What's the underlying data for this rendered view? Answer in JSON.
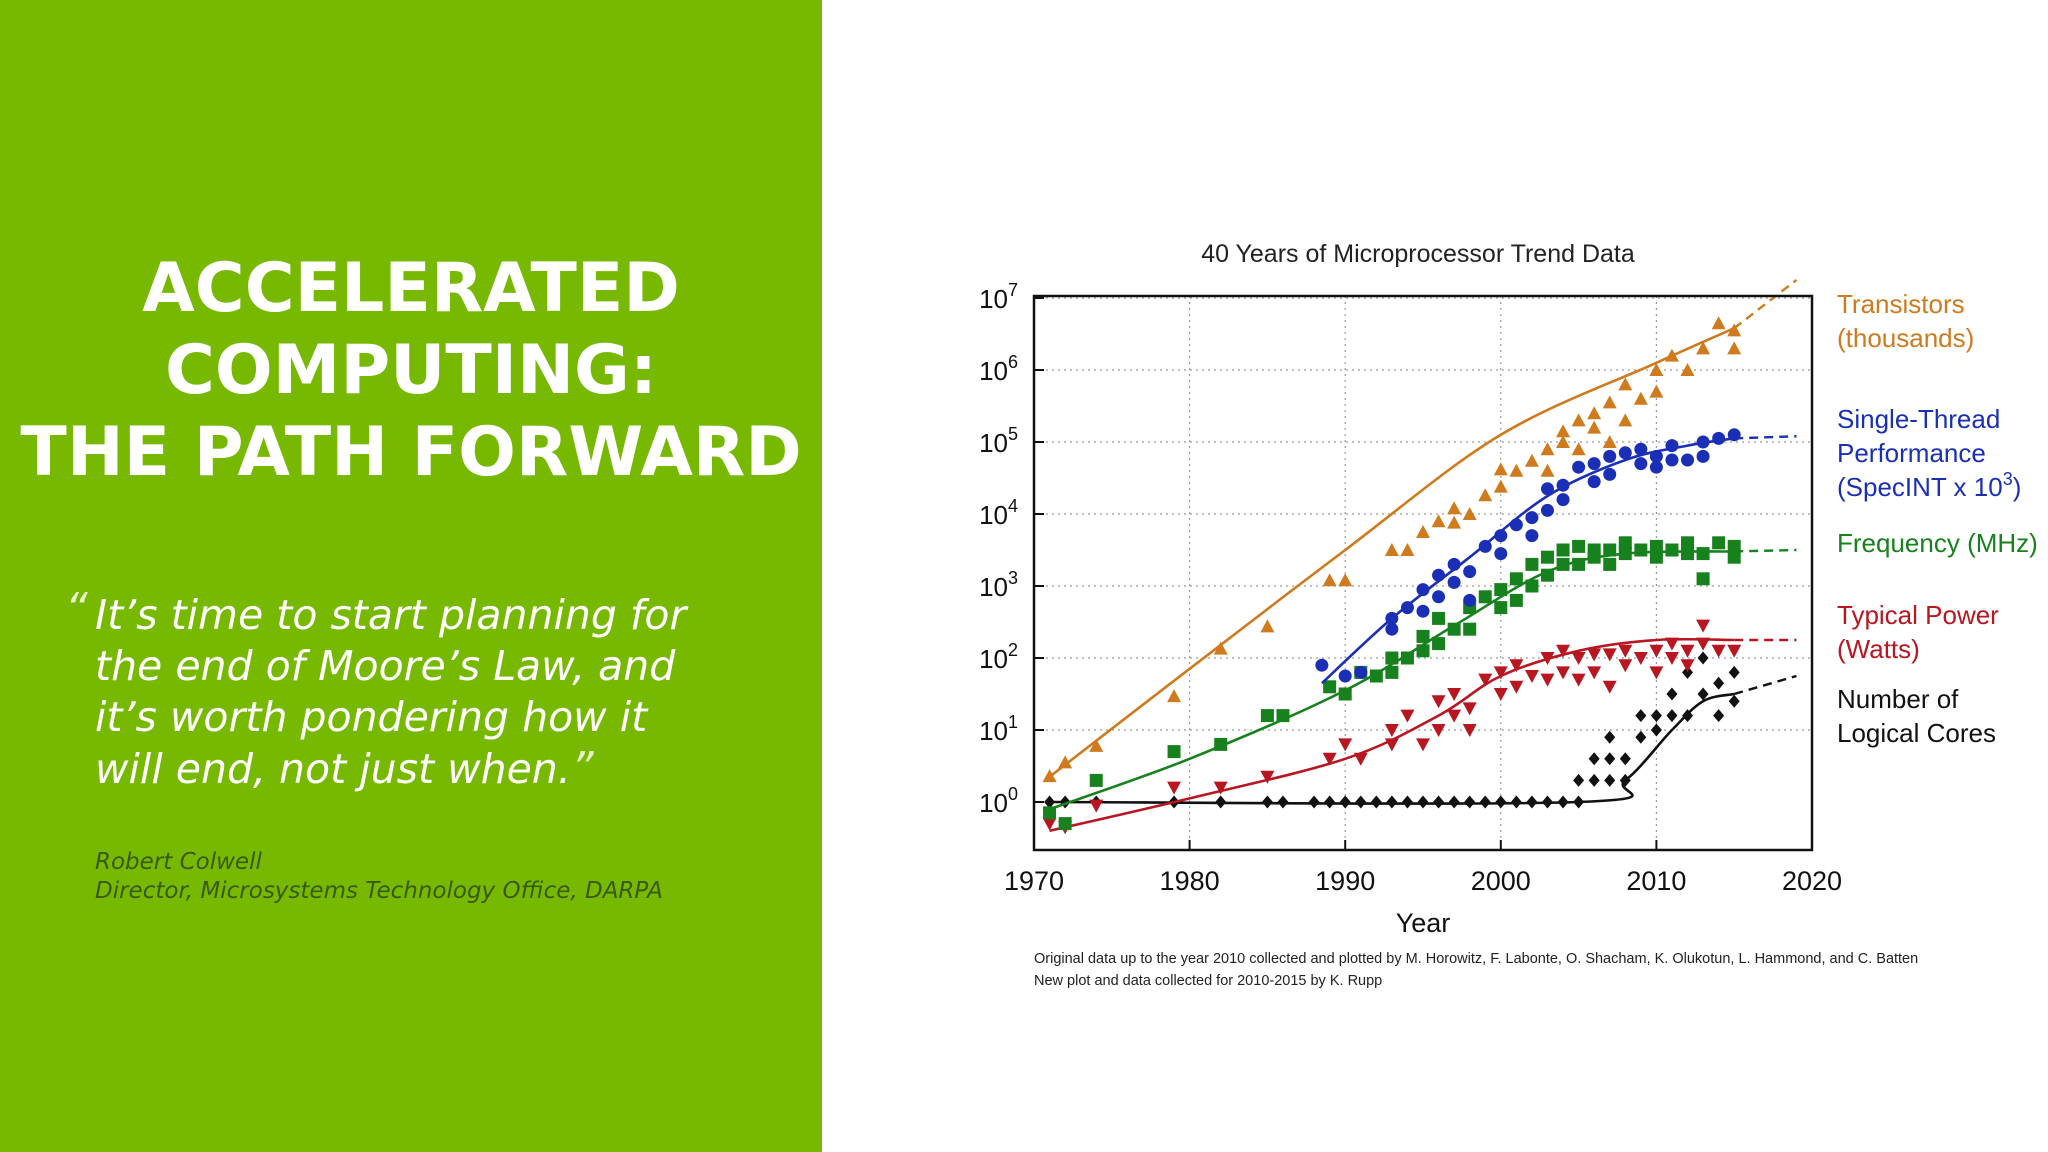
{
  "slide": {
    "title_lines": [
      "ACCELERATED",
      "COMPUTING:",
      "THE PATH FORWARD"
    ],
    "quote_open": "“",
    "quote_lines": [
      "It’s time to start planning for",
      "the end of Moore’s Law, and",
      "it’s worth pondering how it",
      "will end, not just when."
    ],
    "quote_close": "”",
    "attribution_name": "Robert Colwell",
    "attribution_role": "Director, Microsystems Technology Office, DARPA",
    "accent_color": "#77b900"
  },
  "chart_data": {
    "type": "scatter",
    "title": "40 Years of Microprocessor Trend Data",
    "xlabel": "Year",
    "ylabel": "",
    "xlim": [
      1970,
      2020
    ],
    "ylim": [
      0,
      7
    ],
    "y_scale": "log10",
    "x_ticks": [
      1970,
      1980,
      1990,
      2000,
      2010,
      2020
    ],
    "y_tick_labels": [
      {
        "base": "10",
        "exp": "0",
        "value": 0
      },
      {
        "base": "10",
        "exp": "1",
        "value": 1
      },
      {
        "base": "10",
        "exp": "2",
        "value": 2
      },
      {
        "base": "10",
        "exp": "3",
        "value": 3
      },
      {
        "base": "10",
        "exp": "4",
        "value": 4
      },
      {
        "base": "10",
        "exp": "5",
        "value": 5
      },
      {
        "base": "10",
        "exp": "6",
        "value": 6
      },
      {
        "base": "10",
        "exp": "7",
        "value": 7
      }
    ],
    "grid": true,
    "legend": "right",
    "footnote_lines": [
      "Original data up to the year 2010 collected and plotted by M. Horowitz, F. Labonte, O. Shacham, K. Olukotun, L. Hammond, and C. Batten",
      "New plot and data collected for 2010-2015 by K. Rupp"
    ],
    "series": [
      {
        "name": "Transistors (thousands)",
        "label_lines": [
          "Transistors",
          "(thousands)"
        ],
        "color": "#d07a1e",
        "marker": "triangle-up",
        "points": [
          [
            1971,
            0.36
          ],
          [
            1972,
            0.55
          ],
          [
            1974,
            0.78
          ],
          [
            1979,
            1.47
          ],
          [
            1982,
            2.13
          ],
          [
            1985,
            2.44
          ],
          [
            1989,
            3.08
          ],
          [
            1990,
            3.08
          ],
          [
            1993,
            3.5
          ],
          [
            1994,
            3.5
          ],
          [
            1995,
            3.75
          ],
          [
            1996,
            3.9
          ],
          [
            1997,
            3.88
          ],
          [
            1997,
            4.08
          ],
          [
            1998,
            4.0
          ],
          [
            1999,
            4.26
          ],
          [
            2000,
            4.62
          ],
          [
            2000,
            4.38
          ],
          [
            2001,
            4.6
          ],
          [
            2002,
            4.74
          ],
          [
            2003,
            4.9
          ],
          [
            2003,
            4.6
          ],
          [
            2004,
            5.0
          ],
          [
            2004,
            5.15
          ],
          [
            2005,
            5.3
          ],
          [
            2005,
            4.9
          ],
          [
            2006,
            5.4
          ],
          [
            2006,
            5.2
          ],
          [
            2007,
            5.55
          ],
          [
            2007,
            5.0
          ],
          [
            2008,
            5.8
          ],
          [
            2008,
            5.3
          ],
          [
            2009,
            5.6
          ],
          [
            2010,
            6.0
          ],
          [
            2010,
            5.7
          ],
          [
            2011,
            6.2
          ],
          [
            2012,
            6.0
          ],
          [
            2013,
            6.3
          ],
          [
            2014,
            6.65
          ],
          [
            2015,
            6.55
          ],
          [
            2015,
            6.3
          ]
        ],
        "trend": [
          [
            1971,
            0.35
          ],
          [
            1980,
            1.85
          ],
          [
            1990,
            3.5
          ],
          [
            2000,
            5.1
          ],
          [
            2010,
            6.1
          ],
          [
            2015,
            6.58
          ]
        ],
        "trend_extension": [
          [
            2015,
            6.58
          ],
          [
            2019,
            7.25
          ]
        ]
      },
      {
        "name": "Single-Thread Performance (SpecINT x 10^3)",
        "label_lines": [
          "Single-Thread",
          "Performance",
          "(SpecINT x 10"
        ],
        "label_sup": "3",
        "label_close": ")",
        "color": "#1a2fb6",
        "marker": "circle",
        "points": [
          [
            1988.5,
            1.9
          ],
          [
            1990,
            1.75
          ],
          [
            1991,
            1.8
          ],
          [
            1993,
            2.4
          ],
          [
            1993,
            2.55
          ],
          [
            1994,
            2.7
          ],
          [
            1995,
            2.95
          ],
          [
            1995,
            2.65
          ],
          [
            1996,
            3.15
          ],
          [
            1996,
            2.85
          ],
          [
            1997,
            3.3
          ],
          [
            1997,
            3.05
          ],
          [
            1998,
            3.2
          ],
          [
            1998,
            2.8
          ],
          [
            1999,
            3.55
          ],
          [
            2000,
            3.7
          ],
          [
            2000,
            3.45
          ],
          [
            2001,
            3.85
          ],
          [
            2002,
            3.95
          ],
          [
            2002,
            3.7
          ],
          [
            2003,
            4.05
          ],
          [
            2003,
            4.35
          ],
          [
            2004,
            4.2
          ],
          [
            2004,
            4.4
          ],
          [
            2005,
            4.65
          ],
          [
            2006,
            4.7
          ],
          [
            2006,
            4.45
          ],
          [
            2007,
            4.8
          ],
          [
            2007,
            4.55
          ],
          [
            2008,
            4.85
          ],
          [
            2009,
            4.9
          ],
          [
            2009,
            4.7
          ],
          [
            2010,
            4.8
          ],
          [
            2010,
            4.65
          ],
          [
            2011,
            4.95
          ],
          [
            2011,
            4.75
          ],
          [
            2012,
            4.75
          ],
          [
            2013,
            5.0
          ],
          [
            2013,
            4.8
          ],
          [
            2014,
            5.05
          ],
          [
            2015,
            5.1
          ]
        ],
        "trend": [
          [
            1988.5,
            1.65
          ],
          [
            1993,
            2.55
          ],
          [
            1998,
            3.4
          ],
          [
            2003,
            4.25
          ],
          [
            2008,
            4.75
          ],
          [
            2012,
            4.95
          ],
          [
            2015,
            5.05
          ]
        ],
        "trend_extension": [
          [
            2015,
            5.05
          ],
          [
            2019,
            5.08
          ]
        ]
      },
      {
        "name": "Frequency (MHz)",
        "label_lines": [
          "Frequency (MHz)"
        ],
        "color": "#17821d",
        "marker": "square",
        "points": [
          [
            1971,
            -0.15
          ],
          [
            1972,
            -0.3
          ],
          [
            1974,
            0.3
          ],
          [
            1979,
            0.7
          ],
          [
            1982,
            0.8
          ],
          [
            1985,
            1.2
          ],
          [
            1986,
            1.2
          ],
          [
            1989,
            1.6
          ],
          [
            1990,
            1.5
          ],
          [
            1991,
            1.8
          ],
          [
            1992,
            1.75
          ],
          [
            1993,
            2.0
          ],
          [
            1993,
            1.8
          ],
          [
            1994,
            2.0
          ],
          [
            1995,
            2.3
          ],
          [
            1995,
            2.1
          ],
          [
            1996,
            2.55
          ],
          [
            1996,
            2.2
          ],
          [
            1997,
            2.4
          ],
          [
            1998,
            2.7
          ],
          [
            1998,
            2.4
          ],
          [
            1999,
            2.85
          ],
          [
            2000,
            2.95
          ],
          [
            2000,
            2.7
          ],
          [
            2001,
            3.1
          ],
          [
            2001,
            2.8
          ],
          [
            2002,
            3.3
          ],
          [
            2002,
            3.0
          ],
          [
            2003,
            3.4
          ],
          [
            2003,
            3.15
          ],
          [
            2004,
            3.5
          ],
          [
            2004,
            3.3
          ],
          [
            2005,
            3.55
          ],
          [
            2005,
            3.3
          ],
          [
            2006,
            3.5
          ],
          [
            2006,
            3.4
          ],
          [
            2007,
            3.5
          ],
          [
            2007,
            3.3
          ],
          [
            2008,
            3.6
          ],
          [
            2008,
            3.45
          ],
          [
            2009,
            3.5
          ],
          [
            2010,
            3.55
          ],
          [
            2010,
            3.4
          ],
          [
            2011,
            3.5
          ],
          [
            2012,
            3.6
          ],
          [
            2012,
            3.45
          ],
          [
            2013,
            3.45
          ],
          [
            2013,
            3.1
          ],
          [
            2014,
            3.6
          ],
          [
            2015,
            3.55
          ],
          [
            2015,
            3.4
          ]
        ],
        "trend": [
          [
            1971,
            -0.1
          ],
          [
            1980,
            0.6
          ],
          [
            1990,
            1.55
          ],
          [
            1997,
            2.45
          ],
          [
            2003,
            3.2
          ],
          [
            2008,
            3.45
          ],
          [
            2015,
            3.48
          ]
        ],
        "trend_extension": [
          [
            2015,
            3.48
          ],
          [
            2019,
            3.5
          ]
        ]
      },
      {
        "name": "Typical Power (Watts)",
        "label_lines": [
          "Typical Power",
          "(Watts)"
        ],
        "color": "#b81621",
        "marker": "triangle-down",
        "points": [
          [
            1971,
            -0.3
          ],
          [
            1972,
            -0.35
          ],
          [
            1974,
            -0.05
          ],
          [
            1979,
            0.2
          ],
          [
            1982,
            0.2
          ],
          [
            1985,
            0.35
          ],
          [
            1989,
            0.6
          ],
          [
            1990,
            0.8
          ],
          [
            1991,
            0.6
          ],
          [
            1993,
            1.0
          ],
          [
            1993,
            0.8
          ],
          [
            1994,
            1.2
          ],
          [
            1995,
            0.8
          ],
          [
            1996,
            1.4
          ],
          [
            1996,
            1.0
          ],
          [
            1997,
            1.5
          ],
          [
            1997,
            1.2
          ],
          [
            1998,
            1.3
          ],
          [
            1998,
            1.0
          ],
          [
            1999,
            1.7
          ],
          [
            2000,
            1.8
          ],
          [
            2000,
            1.5
          ],
          [
            2001,
            1.9
          ],
          [
            2001,
            1.6
          ],
          [
            2002,
            1.75
          ],
          [
            2003,
            2.0
          ],
          [
            2003,
            1.7
          ],
          [
            2004,
            2.1
          ],
          [
            2004,
            1.8
          ],
          [
            2005,
            2.0
          ],
          [
            2005,
            1.7
          ],
          [
            2006,
            2.05
          ],
          [
            2006,
            1.8
          ],
          [
            2007,
            2.05
          ],
          [
            2007,
            1.6
          ],
          [
            2008,
            2.1
          ],
          [
            2008,
            1.9
          ],
          [
            2009,
            2.0
          ],
          [
            2010,
            2.1
          ],
          [
            2010,
            1.8
          ],
          [
            2011,
            2.2
          ],
          [
            2011,
            2.0
          ],
          [
            2012,
            2.1
          ],
          [
            2012,
            1.9
          ],
          [
            2013,
            2.2
          ],
          [
            2013,
            2.45
          ],
          [
            2014,
            2.1
          ],
          [
            2015,
            2.1
          ]
        ],
        "trend": [
          [
            1971,
            -0.4
          ],
          [
            1980,
            0.05
          ],
          [
            1990,
            0.6
          ],
          [
            1996,
            1.2
          ],
          [
            2000,
            1.75
          ],
          [
            2005,
            2.1
          ],
          [
            2010,
            2.25
          ],
          [
            2015,
            2.25
          ]
        ],
        "trend_extension": [
          [
            2015,
            2.25
          ],
          [
            2019,
            2.25
          ]
        ]
      },
      {
        "name": "Number of Logical Cores",
        "label_lines": [
          "Number of",
          "Logical Cores"
        ],
        "color": "#111111",
        "marker": "diamond",
        "points": [
          [
            1971,
            0
          ],
          [
            1972,
            0
          ],
          [
            1974,
            0
          ],
          [
            1979,
            0
          ],
          [
            1982,
            0
          ],
          [
            1985,
            0
          ],
          [
            1986,
            0
          ],
          [
            1988,
            0
          ],
          [
            1989,
            0
          ],
          [
            1990,
            0
          ],
          [
            1991,
            0
          ],
          [
            1992,
            0
          ],
          [
            1993,
            0
          ],
          [
            1994,
            0
          ],
          [
            1995,
            0
          ],
          [
            1996,
            0
          ],
          [
            1997,
            0
          ],
          [
            1998,
            0
          ],
          [
            1999,
            0
          ],
          [
            2000,
            0
          ],
          [
            2001,
            0
          ],
          [
            2002,
            0
          ],
          [
            2003,
            0
          ],
          [
            2004,
            0
          ],
          [
            2005,
            0.3
          ],
          [
            2005,
            0
          ],
          [
            2006,
            0.6
          ],
          [
            2006,
            0.3
          ],
          [
            2007,
            0.9
          ],
          [
            2007,
            0.6
          ],
          [
            2007,
            0.3
          ],
          [
            2008,
            0.6
          ],
          [
            2008,
            0.3
          ],
          [
            2009,
            0.9
          ],
          [
            2009,
            1.2
          ],
          [
            2010,
            1.0
          ],
          [
            2010,
            1.2
          ],
          [
            2011,
            1.2
          ],
          [
            2011,
            1.5
          ],
          [
            2012,
            1.2
          ],
          [
            2012,
            1.8
          ],
          [
            2013,
            1.5
          ],
          [
            2013,
            2.0
          ],
          [
            2014,
            1.2
          ],
          [
            2014,
            1.65
          ],
          [
            2015,
            1.4
          ],
          [
            2015,
            1.8
          ]
        ],
        "trend": [
          [
            1971,
            0
          ],
          [
            2005,
            0
          ],
          [
            2008,
            0.3
          ],
          [
            2011,
            1.0
          ],
          [
            2013,
            1.4
          ],
          [
            2015,
            1.5
          ]
        ],
        "trend_extension": [
          [
            2015,
            1.5
          ],
          [
            2019,
            1.75
          ]
        ]
      }
    ]
  }
}
